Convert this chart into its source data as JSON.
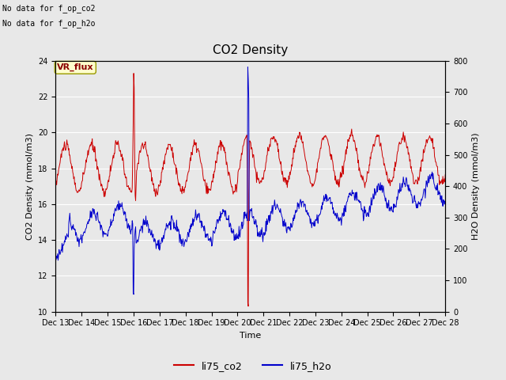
{
  "title": "CO2 Density",
  "xlabel": "Time",
  "ylabel_left": "CO2 Density (mmol/m3)",
  "ylabel_right": "H2O Density (mmol/m3)",
  "top_text_1": "No data for f_op_co2",
  "top_text_2": "No data for f_op_h2o",
  "legend_box_label": "VR_flux",
  "legend_box_facecolor": "#ffffcc",
  "legend_box_edgecolor": "#999900",
  "xlim": [
    13,
    28
  ],
  "ylim_left": [
    10,
    24
  ],
  "ylim_right": [
    0,
    800
  ],
  "yticks_left": [
    10,
    12,
    14,
    16,
    18,
    20,
    22,
    24
  ],
  "yticks_right": [
    0,
    100,
    200,
    300,
    400,
    500,
    600,
    700,
    800
  ],
  "xtick_positions": [
    13,
    14,
    15,
    16,
    17,
    18,
    19,
    20,
    21,
    22,
    23,
    24,
    25,
    26,
    27,
    28
  ],
  "xtick_labels": [
    "Dec 13",
    "Dec 14",
    "Dec 15",
    "Dec 16",
    "Dec 17",
    "Dec 18",
    "Dec 19",
    "Dec 20",
    "Dec 21",
    "Dec 22",
    "Dec 23",
    "Dec 24",
    "Dec 25",
    "Dec 26",
    "Dec 27",
    "Dec 28"
  ],
  "bg_color": "#e8e8e8",
  "grid_color": "#ffffff",
  "fig_bg_color": "#e8e8e8",
  "co2_color": "#cc0000",
  "h2o_color": "#0000cc",
  "legend_co2_label": "li75_co2",
  "legend_h2o_label": "li75_h2o",
  "title_fontsize": 11,
  "label_fontsize": 8,
  "tick_fontsize": 7,
  "legend_fontsize": 9
}
